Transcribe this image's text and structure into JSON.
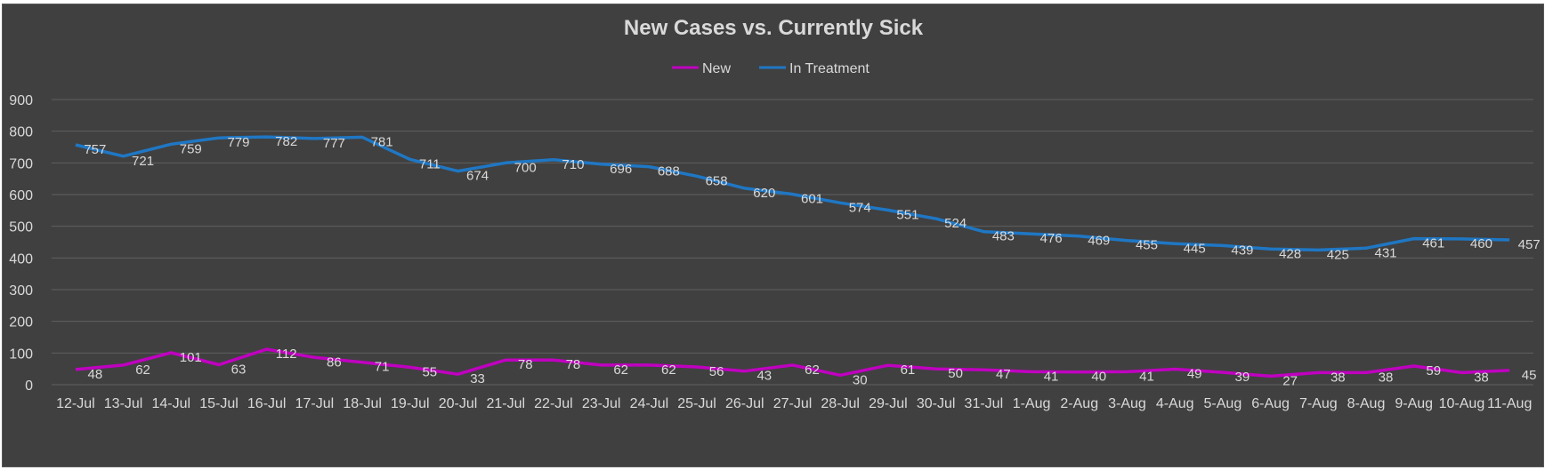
{
  "chart_data": {
    "type": "line",
    "title": "New Cases vs. Currently Sick",
    "xlabel": "",
    "ylabel": "",
    "ylim": [
      0,
      900
    ],
    "y_ticks": [
      "0",
      "100",
      "200",
      "300",
      "400",
      "500",
      "600",
      "700",
      "800",
      "900"
    ],
    "grid": true,
    "legend_position": "top",
    "categories": [
      "12-Jul",
      "13-Jul",
      "14-Jul",
      "15-Jul",
      "16-Jul",
      "17-Jul",
      "18-Jul",
      "19-Jul",
      "20-Jul",
      "21-Jul",
      "22-Jul",
      "23-Jul",
      "24-Jul",
      "25-Jul",
      "26-Jul",
      "27-Jul",
      "28-Jul",
      "29-Jul",
      "30-Jul",
      "31-Jul",
      "1-Aug",
      "2-Aug",
      "3-Aug",
      "4-Aug",
      "5-Aug",
      "6-Aug",
      "7-Aug",
      "8-Aug",
      "9-Aug",
      "10-Aug",
      "11-Aug"
    ],
    "series": [
      {
        "name": "New",
        "color": "#c000c0",
        "values": [
          48,
          62,
          101,
          63,
          112,
          86,
          71,
          55,
          33,
          78,
          78,
          62,
          62,
          56,
          43,
          62,
          30,
          61,
          50,
          47,
          41,
          40,
          41,
          49,
          39,
          27,
          38,
          38,
          59,
          38,
          45
        ]
      },
      {
        "name": "In Treatment",
        "color": "#1f77c4",
        "values": [
          757,
          721,
          759,
          779,
          782,
          777,
          781,
          711,
          674,
          700,
          710,
          696,
          688,
          658,
          620,
          601,
          574,
          551,
          524,
          483,
          476,
          469,
          455,
          445,
          439,
          428,
          425,
          431,
          461,
          460,
          457
        ]
      }
    ]
  }
}
